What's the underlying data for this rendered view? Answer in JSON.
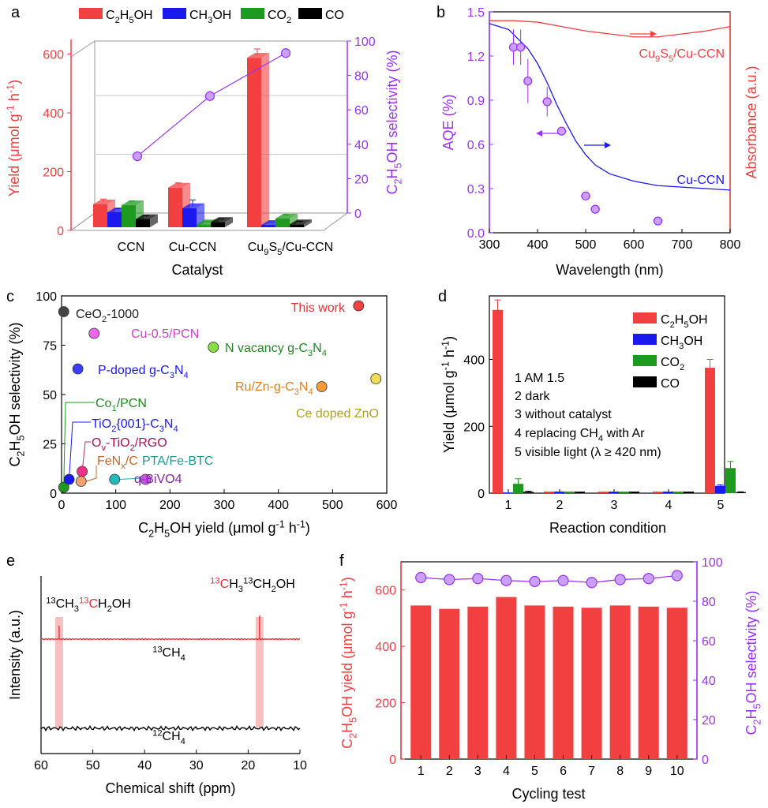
{
  "panels": {
    "a": "a",
    "b": "b",
    "c": "c",
    "d": "d",
    "e": "e",
    "f": "f"
  },
  "colors": {
    "red": "#f24040",
    "blue": "#1a1aee",
    "green": "#1e9a1e",
    "black": "#000000",
    "purple": "#9b30ff"
  },
  "chart_data": [
    {
      "panel": "a",
      "type": "bar",
      "categories": [
        "CCN",
        "Cu-CCN",
        "Cu9S5/Cu-CCN"
      ],
      "legend": [
        "C2H5OH",
        "CH3OH",
        "CO2",
        "CO"
      ],
      "series": [
        {
          "name": "C2H5OH",
          "values": [
            78,
            135,
            577
          ],
          "errors": [
            10,
            8,
            22
          ]
        },
        {
          "name": "CH3OH",
          "values": [
            51,
            65,
            8
          ],
          "errors": [
            4,
            20,
            2
          ]
        },
        {
          "name": "CO2",
          "values": [
            75,
            10,
            30
          ],
          "errors": [
            6,
            2,
            5
          ]
        },
        {
          "name": "CO",
          "values": [
            28,
            18,
            10
          ],
          "errors": [
            3,
            2,
            2
          ]
        }
      ],
      "line": {
        "name": "C2H5OH selectivity",
        "values": [
          33,
          68,
          93
        ],
        "errors": [
          3,
          3,
          2
        ]
      },
      "xlabel": "Catalyst",
      "ylabel": "Yield (μmol g⁻¹ h⁻¹)",
      "ylabel2": "C2H5OH selectivity (%)",
      "yticks": [
        "0",
        "200",
        "400",
        "600"
      ],
      "y2ticks": [
        "0",
        "20",
        "40",
        "60",
        "80",
        "100"
      ],
      "ylim": [
        0,
        650
      ],
      "y2lim": [
        0,
        100
      ]
    },
    {
      "panel": "b",
      "type": "scatter",
      "xlabel": "Wavelength (nm)",
      "ylabel": "AQE (%)",
      "ylabel2": "Absorbance (a.u.)",
      "xlim": [
        300,
        800
      ],
      "ylim": [
        0,
        1.5
      ],
      "xticks": [
        "300",
        "400",
        "500",
        "600",
        "700",
        "800"
      ],
      "yticks": [
        "0.0",
        "0.3",
        "0.6",
        "0.9",
        "1.2",
        "1.5"
      ],
      "points": [
        {
          "x": 350,
          "y": 1.26,
          "yerr": 0.12,
          "xerr": 6
        },
        {
          "x": 365,
          "y": 1.26,
          "yerr": 0.12,
          "xerr": 6
        },
        {
          "x": 380,
          "y": 1.03,
          "yerr": 0.15,
          "xerr": 8
        },
        {
          "x": 420,
          "y": 0.89,
          "yerr": 0.1,
          "xerr": 10
        },
        {
          "x": 450,
          "y": 0.69,
          "yerr": 0.03,
          "xerr": 10
        },
        {
          "x": 500,
          "y": 0.25,
          "yerr": 0.03,
          "xerr": 10
        },
        {
          "x": 520,
          "y": 0.16,
          "yerr": 0.02,
          "xerr": 10
        },
        {
          "x": 650,
          "y": 0.08,
          "yerr": 0.01,
          "xerr": 10
        }
      ],
      "curves": [
        {
          "name": "Cu9S5/Cu-CCN",
          "x": [
            300,
            350,
            400,
            450,
            500,
            550,
            600,
            650,
            700,
            750,
            800
          ],
          "y": [
            1.44,
            1.44,
            1.43,
            1.4,
            1.37,
            1.35,
            1.33,
            1.33,
            1.35,
            1.37,
            1.4
          ]
        },
        {
          "name": "Cu-CCN",
          "x": [
            300,
            340,
            380,
            400,
            420,
            440,
            460,
            480,
            500,
            520,
            550,
            600,
            650,
            700,
            750,
            800
          ],
          "y": [
            1.42,
            1.38,
            1.25,
            1.15,
            1.02,
            0.87,
            0.74,
            0.62,
            0.53,
            0.46,
            0.4,
            0.35,
            0.32,
            0.31,
            0.3,
            0.29
          ]
        }
      ],
      "labels": [
        "Cu9S5/Cu-CCN",
        "Cu-CCN"
      ]
    },
    {
      "panel": "c",
      "type": "scatter",
      "xlabel": "C2H5OH yield (μmol g⁻¹ h⁻¹)",
      "ylabel": "C2H5OH selectivity (%)",
      "xlim": [
        0,
        600
      ],
      "ylim": [
        0,
        100
      ],
      "xticks": [
        "0",
        "100",
        "200",
        "300",
        "400",
        "500",
        "600"
      ],
      "yticks": [
        "0",
        "25",
        "50",
        "75",
        "100"
      ],
      "points": [
        {
          "name": "This work",
          "x": 548,
          "y": 95,
          "color": "#f24040"
        },
        {
          "name": "CeO2-1000",
          "x": 4,
          "y": 92,
          "color": "#444444"
        },
        {
          "name": "Cu-0.5/PCN",
          "x": 60,
          "y": 81,
          "color": "#ee66ee"
        },
        {
          "name": "N vacancy g-C3N4",
          "x": 280,
          "y": 74,
          "color": "#88dd44"
        },
        {
          "name": "P-doped g-C3N4",
          "x": 30,
          "y": 63,
          "color": "#3b3bff"
        },
        {
          "name": "Ru/Zn-g-C3N4",
          "x": 480,
          "y": 54,
          "color": "#f59b38"
        },
        {
          "name": "Ce doped ZnO",
          "x": 580,
          "y": 58,
          "color": "#eedd55"
        },
        {
          "name": "Co1/PCN",
          "x": 4,
          "y": 3,
          "color": "#1e9a1e"
        },
        {
          "name": "TiO2{001}-C3N4",
          "x": 14,
          "y": 7,
          "color": "#1a1aee"
        },
        {
          "name": "Ov-TiO2/RGO",
          "x": 38,
          "y": 11,
          "color": "#ee3388"
        },
        {
          "name": "FeNx/C",
          "x": 36,
          "y": 6,
          "color": "#f5a070"
        },
        {
          "name": "PTA/Fe-BTC",
          "x": 98,
          "y": 7,
          "color": "#22bbbb"
        },
        {
          "name": "q-BiVO4",
          "x": 155,
          "y": 7,
          "color": "#cc55ee"
        }
      ]
    },
    {
      "panel": "d",
      "type": "bar",
      "categories": [
        "1",
        "2",
        "3",
        "4",
        "5"
      ],
      "legend": [
        "C2H5OH",
        "CH3OH",
        "CO2",
        "CO"
      ],
      "series": [
        {
          "name": "C2H5OH",
          "values": [
            548,
            0,
            0,
            0,
            375
          ],
          "errors": [
            30,
            0,
            0,
            0,
            25
          ]
        },
        {
          "name": "CH3OH",
          "values": [
            2,
            0,
            0,
            0,
            22
          ],
          "errors": [
            0,
            0,
            0,
            0,
            3
          ]
        },
        {
          "name": "CO2",
          "values": [
            28,
            0,
            0,
            0,
            75
          ],
          "errors": [
            15,
            0,
            0,
            0,
            20
          ]
        },
        {
          "name": "CO",
          "values": [
            4,
            0,
            0,
            0,
            3
          ],
          "errors": [
            2,
            0,
            0,
            0,
            1
          ]
        }
      ],
      "conditions": [
        "1 AM 1.5",
        "2 dark",
        "3 without catalyst",
        "4 replacing CH4 with Ar",
        "5 visible light (λ ≥ 420 nm)"
      ],
      "xlabel": "Reaction condition",
      "ylabel": "Yield (μmol g⁻¹ h⁻¹)",
      "yticks": [
        "0",
        "200",
        "400"
      ],
      "ylim": [
        0,
        590
      ]
    },
    {
      "panel": "e",
      "type": "line",
      "xlabel": "Chemical shift (ppm)",
      "ylabel": "Intensity (a.u.)",
      "xlim": [
        60,
        10
      ],
      "xticks": [
        "60",
        "50",
        "40",
        "30",
        "20",
        "10"
      ],
      "series": [
        {
          "name": "13CH4",
          "peaks_ppm": [
            56.5,
            17.8
          ]
        },
        {
          "name": "12CH4",
          "peaks_ppm": []
        }
      ],
      "labels": [
        "13CH3 13CH2OH",
        "13CH3 13CH2OH",
        "13CH4",
        "12CH4"
      ]
    },
    {
      "panel": "f",
      "type": "bar",
      "categories": [
        "1",
        "2",
        "3",
        "4",
        "5",
        "6",
        "7",
        "8",
        "9",
        "10"
      ],
      "values": [
        545,
        533,
        541,
        575,
        545,
        541,
        537,
        545,
        541,
        537
      ],
      "line": {
        "name": "C2H5OH selectivity",
        "values": [
          92,
          91,
          91.5,
          90.5,
          90,
          90.5,
          89.5,
          91,
          91.5,
          93
        ]
      },
      "xlabel": "Cycling test",
      "ylabel": "C2H5OH yield (μmol g⁻¹ h⁻¹)",
      "ylabel2": "C2H5OH selectivity (%)",
      "yticks": [
        "0",
        "200",
        "400",
        "600"
      ],
      "y2ticks": [
        "0",
        "20",
        "40",
        "60",
        "80",
        "100"
      ],
      "ylim": [
        0,
        700
      ],
      "y2lim": [
        0,
        100
      ]
    }
  ]
}
